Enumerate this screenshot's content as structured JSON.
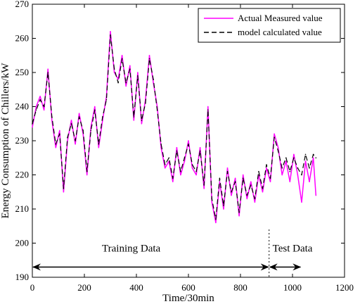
{
  "chart_data": {
    "type": "line",
    "xlabel": "Time/30min",
    "ylabel": "Energy Consumption of Chillers/kW",
    "xlim": [
      0,
      1200
    ],
    "ylim": [
      190,
      270
    ],
    "xticks": [
      "0",
      "200",
      "400",
      "600",
      "800",
      "1000",
      "1200"
    ],
    "yticks": [
      "190",
      "200",
      "210",
      "220",
      "230",
      "240",
      "250",
      "260",
      "270"
    ],
    "legend_position": "top-right",
    "grid": false,
    "series": [
      {
        "name": "Actual Measured value",
        "color": "#ff00ff",
        "style": "solid",
        "x": [
          0,
          15,
          30,
          45,
          60,
          75,
          90,
          105,
          120,
          135,
          150,
          165,
          180,
          195,
          210,
          225,
          240,
          255,
          270,
          285,
          300,
          315,
          330,
          345,
          360,
          375,
          390,
          405,
          420,
          435,
          450,
          465,
          480,
          495,
          510,
          525,
          540,
          555,
          570,
          585,
          600,
          615,
          630,
          645,
          660,
          675,
          690,
          705,
          720,
          735,
          750,
          765,
          780,
          795,
          810,
          825,
          840,
          855,
          870,
          885,
          900,
          915,
          930,
          945,
          960,
          975,
          990,
          1005,
          1020,
          1035,
          1050,
          1065,
          1080,
          1090
        ],
        "values": [
          234,
          240,
          243,
          239,
          251,
          236,
          228,
          233,
          215,
          230,
          236,
          229,
          238,
          232,
          220,
          234,
          240,
          228,
          236,
          243,
          262,
          250,
          248,
          255,
          246,
          252,
          236,
          250,
          235,
          242,
          255,
          247,
          240,
          228,
          222,
          224,
          218,
          228,
          220,
          224,
          230,
          222,
          220,
          228,
          216,
          240,
          212,
          206,
          218,
          210,
          222,
          214,
          219,
          208,
          220,
          213,
          218,
          212,
          220,
          215,
          222,
          218,
          232,
          228,
          220,
          224,
          218,
          226,
          220,
          212,
          224,
          218,
          225,
          214
        ]
      },
      {
        "name": "model calculated value",
        "color": "#000000",
        "style": "dashed",
        "x": [
          0,
          15,
          30,
          45,
          60,
          75,
          90,
          105,
          120,
          135,
          150,
          165,
          180,
          195,
          210,
          225,
          240,
          255,
          270,
          285,
          300,
          315,
          330,
          345,
          360,
          375,
          390,
          405,
          420,
          435,
          450,
          465,
          480,
          495,
          510,
          525,
          540,
          555,
          570,
          585,
          600,
          615,
          630,
          645,
          660,
          675,
          690,
          705,
          720,
          735,
          750,
          765,
          780,
          795,
          810,
          825,
          840,
          855,
          870,
          885,
          900,
          915,
          930,
          945,
          960,
          975,
          990,
          1005,
          1020,
          1035,
          1050,
          1065,
          1080,
          1090
        ],
        "values": [
          235,
          239,
          242,
          240,
          250,
          237,
          229,
          232,
          216,
          231,
          235,
          230,
          237,
          233,
          221,
          233,
          239,
          229,
          237,
          242,
          261,
          251,
          247,
          254,
          247,
          251,
          237,
          249,
          236,
          241,
          254,
          248,
          239,
          229,
          223,
          225,
          219,
          227,
          221,
          225,
          229,
          223,
          221,
          227,
          217,
          239,
          213,
          207,
          219,
          211,
          221,
          215,
          218,
          209,
          219,
          214,
          217,
          213,
          221,
          216,
          223,
          219,
          231,
          227,
          222,
          225,
          221,
          225,
          222,
          220,
          226,
          222,
          226,
          225
        ]
      }
    ],
    "annotations": [
      {
        "text": "Training Data",
        "x_range": [
          0,
          910
        ]
      },
      {
        "text": "Test Data",
        "x_range": [
          910,
          1090
        ]
      }
    ],
    "split_x": 910
  }
}
